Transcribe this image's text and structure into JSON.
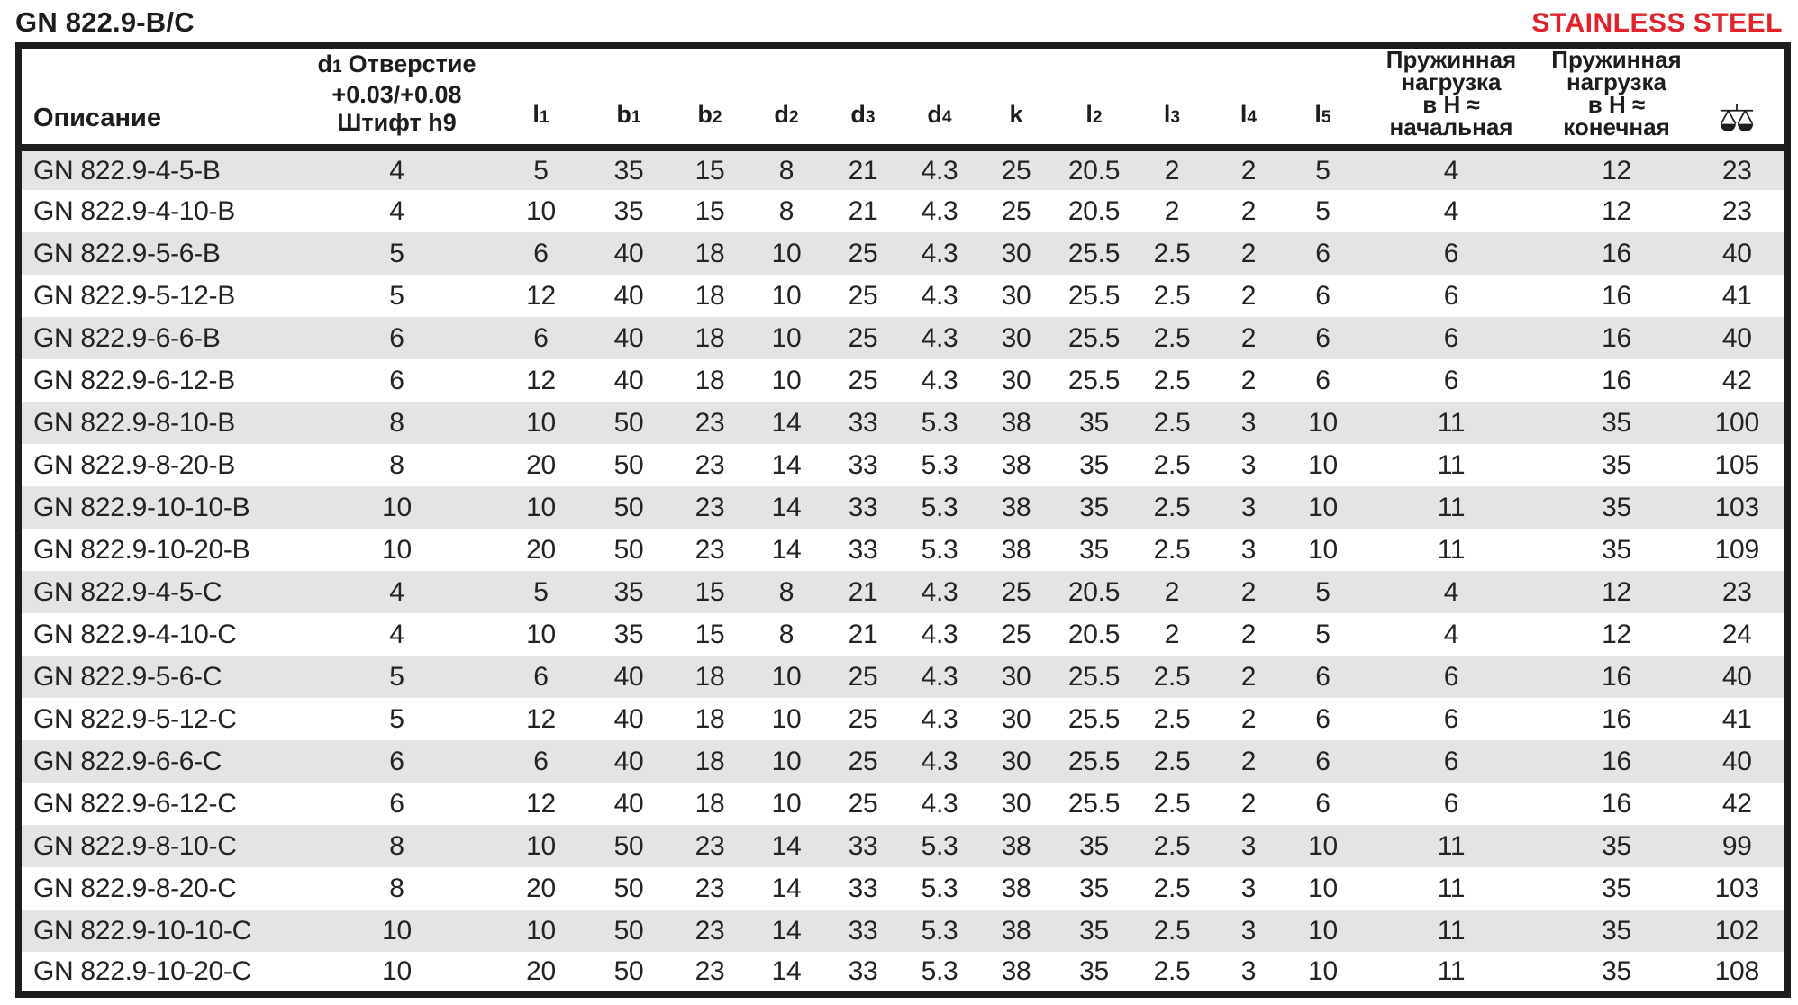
{
  "page": {
    "title": "GN 822.9-B/C",
    "badge": "STAINLESS STEEL"
  },
  "colors": {
    "badge_red": "#e2222a",
    "stripe_gray": "#e4e4e4",
    "ink_black": "#1d1d1b"
  },
  "table": {
    "header": {
      "description": "Описание",
      "d1": {
        "base": "d",
        "sub": "1",
        "rest": "Отверстие",
        "line2": "+0.03/+0.08",
        "line3": "Штифт h9"
      },
      "dim_columns": [
        {
          "base": "l",
          "sub": "1"
        },
        {
          "base": "b",
          "sub": "1"
        },
        {
          "base": "b",
          "sub": "2"
        },
        {
          "base": "d",
          "sub": "2"
        },
        {
          "base": "d",
          "sub": "3"
        },
        {
          "base": "d",
          "sub": "4"
        },
        {
          "base": "k",
          "sub": ""
        },
        {
          "base": "l",
          "sub": "2"
        },
        {
          "base": "l",
          "sub": "3"
        },
        {
          "base": "l",
          "sub": "4"
        },
        {
          "base": "l",
          "sub": "5"
        }
      ],
      "spring_initial_lines": [
        "Пружинная",
        "нагрузка",
        "в Н ≈",
        "начальная"
      ],
      "spring_final_lines": [
        "Пружинная",
        "нагрузка",
        "в Н ≈",
        "конечная"
      ],
      "weight_icon": "scale-icon"
    },
    "rows": [
      {
        "description": "GN 822.9-4-5-B",
        "values": [
          "4",
          "5",
          "35",
          "15",
          "8",
          "21",
          "4.3",
          "25",
          "20.5",
          "2",
          "2",
          "5",
          "4",
          "12",
          "23"
        ]
      },
      {
        "description": "GN 822.9-4-10-B",
        "values": [
          "4",
          "10",
          "35",
          "15",
          "8",
          "21",
          "4.3",
          "25",
          "20.5",
          "2",
          "2",
          "5",
          "4",
          "12",
          "23"
        ]
      },
      {
        "description": "GN 822.9-5-6-B",
        "values": [
          "5",
          "6",
          "40",
          "18",
          "10",
          "25",
          "4.3",
          "30",
          "25.5",
          "2.5",
          "2",
          "6",
          "6",
          "16",
          "40"
        ]
      },
      {
        "description": "GN 822.9-5-12-B",
        "values": [
          "5",
          "12",
          "40",
          "18",
          "10",
          "25",
          "4.3",
          "30",
          "25.5",
          "2.5",
          "2",
          "6",
          "6",
          "16",
          "41"
        ]
      },
      {
        "description": "GN 822.9-6-6-B",
        "values": [
          "6",
          "6",
          "40",
          "18",
          "10",
          "25",
          "4.3",
          "30",
          "25.5",
          "2.5",
          "2",
          "6",
          "6",
          "16",
          "40"
        ]
      },
      {
        "description": "GN 822.9-6-12-B",
        "values": [
          "6",
          "12",
          "40",
          "18",
          "10",
          "25",
          "4.3",
          "30",
          "25.5",
          "2.5",
          "2",
          "6",
          "6",
          "16",
          "42"
        ]
      },
      {
        "description": "GN 822.9-8-10-B",
        "values": [
          "8",
          "10",
          "50",
          "23",
          "14",
          "33",
          "5.3",
          "38",
          "35",
          "2.5",
          "3",
          "10",
          "11",
          "35",
          "100"
        ]
      },
      {
        "description": "GN 822.9-8-20-B",
        "values": [
          "8",
          "20",
          "50",
          "23",
          "14",
          "33",
          "5.3",
          "38",
          "35",
          "2.5",
          "3",
          "10",
          "11",
          "35",
          "105"
        ]
      },
      {
        "description": "GN 822.9-10-10-B",
        "values": [
          "10",
          "10",
          "50",
          "23",
          "14",
          "33",
          "5.3",
          "38",
          "35",
          "2.5",
          "3",
          "10",
          "11",
          "35",
          "103"
        ]
      },
      {
        "description": "GN 822.9-10-20-B",
        "values": [
          "10",
          "20",
          "50",
          "23",
          "14",
          "33",
          "5.3",
          "38",
          "35",
          "2.5",
          "3",
          "10",
          "11",
          "35",
          "109"
        ]
      },
      {
        "description": "GN 822.9-4-5-C",
        "values": [
          "4",
          "5",
          "35",
          "15",
          "8",
          "21",
          "4.3",
          "25",
          "20.5",
          "2",
          "2",
          "5",
          "4",
          "12",
          "23"
        ]
      },
      {
        "description": "GN 822.9-4-10-C",
        "values": [
          "4",
          "10",
          "35",
          "15",
          "8",
          "21",
          "4.3",
          "25",
          "20.5",
          "2",
          "2",
          "5",
          "4",
          "12",
          "24"
        ]
      },
      {
        "description": "GN 822.9-5-6-C",
        "values": [
          "5",
          "6",
          "40",
          "18",
          "10",
          "25",
          "4.3",
          "30",
          "25.5",
          "2.5",
          "2",
          "6",
          "6",
          "16",
          "40"
        ]
      },
      {
        "description": "GN 822.9-5-12-C",
        "values": [
          "5",
          "12",
          "40",
          "18",
          "10",
          "25",
          "4.3",
          "30",
          "25.5",
          "2.5",
          "2",
          "6",
          "6",
          "16",
          "41"
        ]
      },
      {
        "description": "GN 822.9-6-6-C",
        "values": [
          "6",
          "6",
          "40",
          "18",
          "10",
          "25",
          "4.3",
          "30",
          "25.5",
          "2.5",
          "2",
          "6",
          "6",
          "16",
          "40"
        ]
      },
      {
        "description": "GN 822.9-6-12-C",
        "values": [
          "6",
          "12",
          "40",
          "18",
          "10",
          "25",
          "4.3",
          "30",
          "25.5",
          "2.5",
          "2",
          "6",
          "6",
          "16",
          "42"
        ]
      },
      {
        "description": "GN 822.9-8-10-C",
        "values": [
          "8",
          "10",
          "50",
          "23",
          "14",
          "33",
          "5.3",
          "38",
          "35",
          "2.5",
          "3",
          "10",
          "11",
          "35",
          "99"
        ]
      },
      {
        "description": "GN 822.9-8-20-C",
        "values": [
          "8",
          "20",
          "50",
          "23",
          "14",
          "33",
          "5.3",
          "38",
          "35",
          "2.5",
          "3",
          "10",
          "11",
          "35",
          "103"
        ]
      },
      {
        "description": "GN 822.9-10-10-C",
        "values": [
          "10",
          "10",
          "50",
          "23",
          "14",
          "33",
          "5.3",
          "38",
          "35",
          "2.5",
          "3",
          "10",
          "11",
          "35",
          "102"
        ]
      },
      {
        "description": "GN 822.9-10-20-C",
        "values": [
          "10",
          "20",
          "50",
          "23",
          "14",
          "33",
          "5.3",
          "38",
          "35",
          "2.5",
          "3",
          "10",
          "11",
          "35",
          "108"
        ]
      }
    ]
  }
}
